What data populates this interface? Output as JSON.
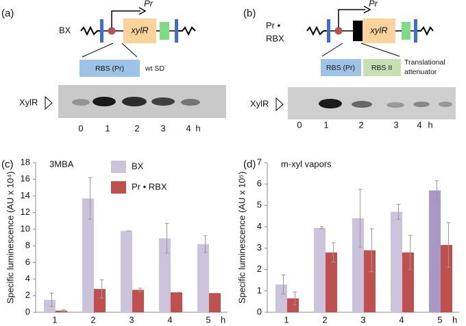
{
  "panels": [
    {
      "label": "(a)",
      "construct": [
        "BX"
      ],
      "promoter": "Pr",
      "gene": "xylR",
      "elements": [
        "RBS (Pr)"
      ],
      "note": [
        "wt SD"
      ],
      "blot": {
        "protein": "XylR",
        "times": [
          "0",
          "1",
          "2",
          "3",
          "4"
        ],
        "unit": "h"
      }
    },
    {
      "label": "(b)",
      "construct": [
        "Pr •",
        "RBX"
      ],
      "promoter": "Pr",
      "gene": "xylR",
      "elements": [
        "RBS (Pr)",
        "RBS II"
      ],
      "note": [
        "Translational",
        "attenuator"
      ],
      "blot": {
        "protein": "XylR",
        "times": [
          "0",
          "1",
          "2",
          "3",
          "4"
        ],
        "unit": "h"
      }
    }
  ],
  "chart_data": [
    {
      "type": "bar",
      "label": "(c)",
      "title": "3MBA",
      "y_label": "Specific luminescence (AU x 10⁴)",
      "categories": [
        "1",
        "2",
        "3",
        "4",
        "5"
      ],
      "x_unit": "h",
      "legend": "top-center",
      "series": [
        {
          "name": "BX",
          "color": "#cbc3dc",
          "values": [
            1.5,
            13.7,
            9.8,
            8.9,
            8.2
          ],
          "errors": [
            0.8,
            2.5,
            0,
            1.8,
            1.0
          ]
        },
        {
          "name": "Pr • RBX",
          "color": "#c0504d",
          "values": [
            0.2,
            2.8,
            2.7,
            2.4,
            2.3
          ],
          "errors": [
            0.1,
            1.1,
            0.2,
            0,
            0
          ]
        }
      ],
      "ylim": [
        0,
        18
      ],
      "yticks": [
        0,
        2,
        4,
        6,
        8,
        10,
        12,
        14,
        16,
        18
      ]
    },
    {
      "type": "bar",
      "label": "(d)",
      "title": "m-xyl vapors",
      "y_label": "Specific luminescence (AU x 10⁵)",
      "categories": [
        "1",
        "2",
        "3",
        "4",
        "5"
      ],
      "x_unit": "h",
      "legend": null,
      "series": [
        {
          "color": "#cbc3dc",
          "colors": [
            "#cbc3dc",
            "#cbc3dc",
            "#cbc3dc",
            "#cbc3dc",
            "#a898c6"
          ],
          "values": [
            1.3,
            3.95,
            4.4,
            4.7,
            5.7
          ],
          "errors": [
            0.45,
            0.05,
            1.35,
            0.35,
            0.45
          ]
        },
        {
          "color": "#c0504d",
          "values": [
            0.65,
            2.8,
            2.9,
            2.8,
            3.15
          ],
          "errors": [
            0.3,
            0.45,
            1.0,
            0.8,
            1.05
          ]
        }
      ],
      "ylim": [
        0,
        7
      ],
      "yticks": [
        0,
        1,
        2,
        3,
        4,
        5,
        6,
        7
      ]
    }
  ]
}
